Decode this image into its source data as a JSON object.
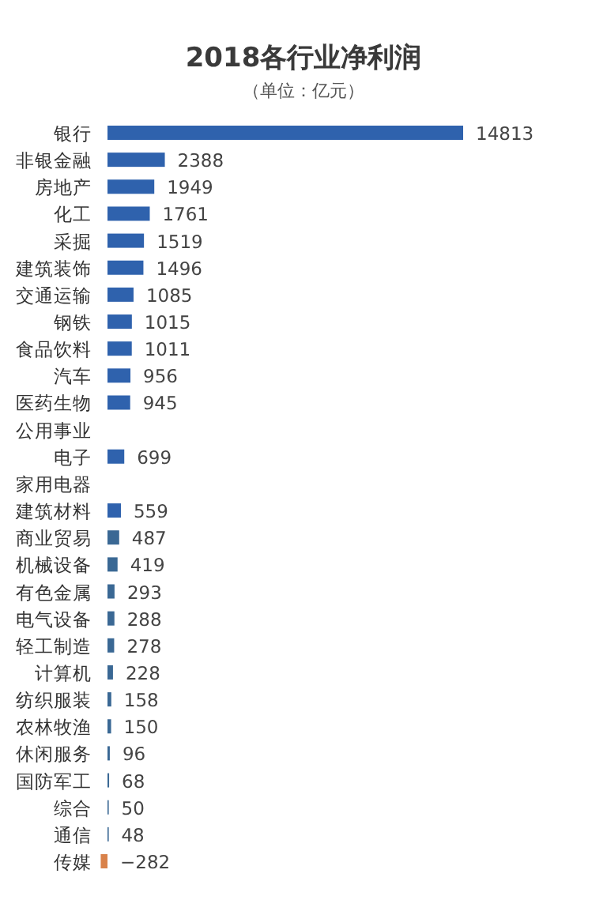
{
  "chart_data": {
    "type": "bar",
    "orientation": "horizontal",
    "title": "2018各行业净利润",
    "subtitle": "（单位：亿元）",
    "data_labels": true,
    "categories": [
      "银行",
      "非银金融",
      "房地产",
      "化工",
      "采掘",
      "建筑装饰",
      "交通运输",
      "钢铁",
      "食品饮料",
      "汽车",
      "医药生物",
      "公用事业",
      "电子",
      "家用电器",
      "建筑材料",
      "商业贸易",
      "机械设备",
      "有色金属",
      "电气设备",
      "轻工制造",
      "计算机",
      "纺织服装",
      "农林牧渔",
      "休闲服务",
      "国防军工",
      "综合",
      "通信",
      "传媒"
    ],
    "values": [
      14813,
      2388,
      1949,
      1761,
      1519,
      1496,
      1085,
      1015,
      1011,
      956,
      945,
      null,
      699,
      null,
      559,
      487,
      419,
      293,
      288,
      278,
      228,
      158,
      150,
      96,
      68,
      50,
      48,
      -282
    ],
    "colors": [
      "#2f62ad",
      "#2f62ad",
      "#2f62ad",
      "#2f62ad",
      "#2f62ad",
      "#2f62ad",
      "#2f62ad",
      "#2f62ad",
      "#2f62ad",
      "#2f62ad",
      "#2f62ad",
      null,
      "#2f62ad",
      null,
      "#2f62ad",
      "#3a6894",
      "#3a6894",
      "#3a6894",
      "#3a6894",
      "#3a6894",
      "#3a6894",
      "#3a6894",
      "#3a6894",
      "#3a6894",
      "#3a6894",
      "#3a6894",
      "#3a6894",
      "#d9824a"
    ]
  }
}
